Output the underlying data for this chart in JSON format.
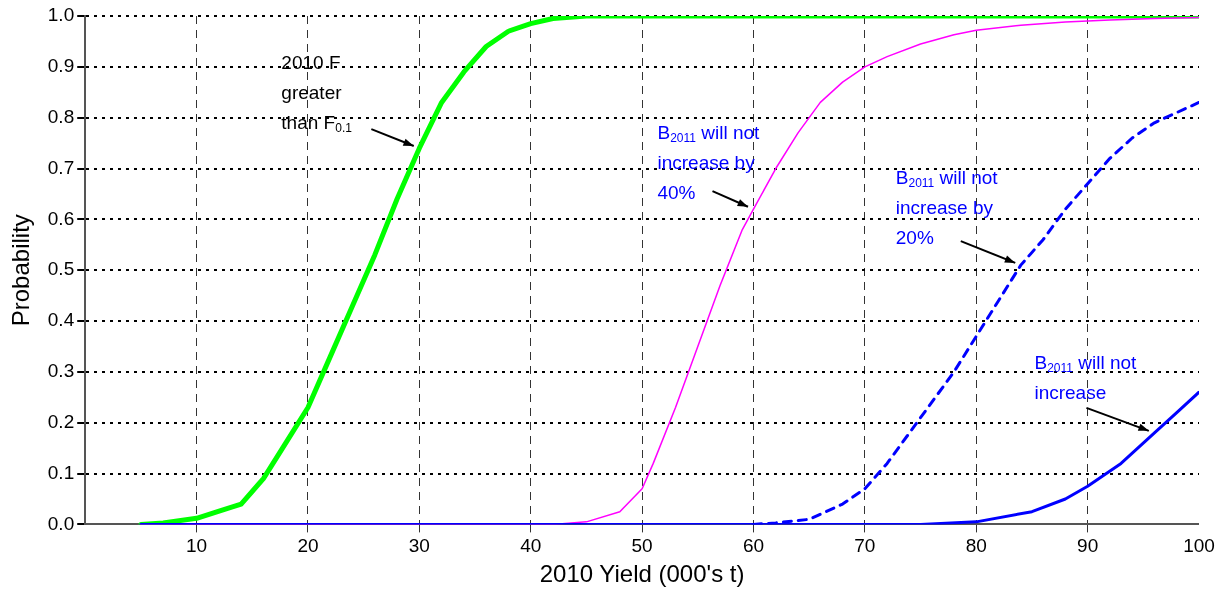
{
  "chart_data": {
    "type": "line",
    "xlabel": "2010 Yield (000's t)",
    "ylabel": "Probability",
    "xlim": [
      0,
      100
    ],
    "xticks": [
      {
        "value": 0,
        "label": null
      },
      10,
      20,
      30,
      40,
      50,
      60,
      70,
      80,
      90,
      100
    ],
    "ylim": [
      0,
      1
    ],
    "yticks": [
      {
        "value": 0,
        "label": "0.0"
      },
      0.1,
      0.2,
      0.3,
      0.4,
      0.5,
      0.6,
      0.7,
      0.8,
      0.9,
      {
        "value": 1,
        "label": "1.0"
      }
    ],
    "grid": true,
    "legend": false,
    "marker": "none",
    "series": [
      {
        "color": "#00ff00",
        "line_style": "solid",
        "x": [
          5,
          7,
          10,
          14,
          16,
          18,
          20,
          22,
          24,
          26,
          28,
          30,
          32,
          34,
          36,
          38,
          40,
          42,
          45,
          100
        ],
        "values": [
          0,
          0.003,
          0.012,
          0.04,
          0.09,
          0.16,
          0.23,
          0.33,
          0.43,
          0.53,
          0.64,
          0.74,
          0.83,
          0.89,
          0.94,
          0.97,
          0.985,
          0.995,
          1,
          1
        ]
      },
      {
        "color": "#ff00ff",
        "line_style": "solid",
        "x": [
          5,
          42,
          45,
          48,
          50,
          51,
          53,
          55,
          57,
          59,
          60,
          62,
          64,
          66,
          68,
          70,
          72,
          75,
          78,
          80,
          84,
          88,
          92,
          96,
          100
        ],
        "values": [
          0,
          0,
          0.005,
          0.025,
          0.07,
          0.12,
          0.23,
          0.35,
          0.47,
          0.58,
          0.62,
          0.7,
          0.77,
          0.83,
          0.87,
          0.9,
          0.92,
          0.945,
          0.963,
          0.972,
          0.982,
          0.988,
          0.992,
          0.995,
          0.997
        ]
      },
      {
        "color": "#0000ff",
        "line_style": "dashed",
        "x": [
          60,
          62,
          65,
          68,
          70,
          72,
          74,
          76,
          78,
          80,
          82,
          84,
          86,
          88,
          90,
          92,
          94,
          96,
          98,
          100
        ],
        "values": [
          0,
          0.003,
          0.01,
          0.04,
          0.07,
          0.12,
          0.18,
          0.24,
          0.3,
          0.37,
          0.44,
          0.51,
          0.56,
          0.62,
          0.67,
          0.72,
          0.76,
          0.79,
          0.81,
          0.83
        ]
      },
      {
        "color": "#0000ff",
        "line_style": "solid",
        "x": [
          5,
          75,
          80,
          85,
          88,
          90,
          93,
          96,
          98,
          100
        ],
        "values": [
          0,
          0,
          0.005,
          0.025,
          0.05,
          0.075,
          0.12,
          0.18,
          0.22,
          0.26
        ]
      }
    ],
    "annotations": [
      {
        "text": "2010 F greater than F$_{0.1}$",
        "x": 30,
        "y": 0.74
      },
      {
        "text": "B$_{2011}$ will not increase by 40%",
        "x": 60,
        "y": 0.62
      },
      {
        "text": "B$_{2011}$ will not increase by 20%",
        "x": 84,
        "y": 0.51
      },
      {
        "text": "B$_{2011}$ will not increase",
        "x": 96,
        "y": 0.18
      }
    ]
  }
}
